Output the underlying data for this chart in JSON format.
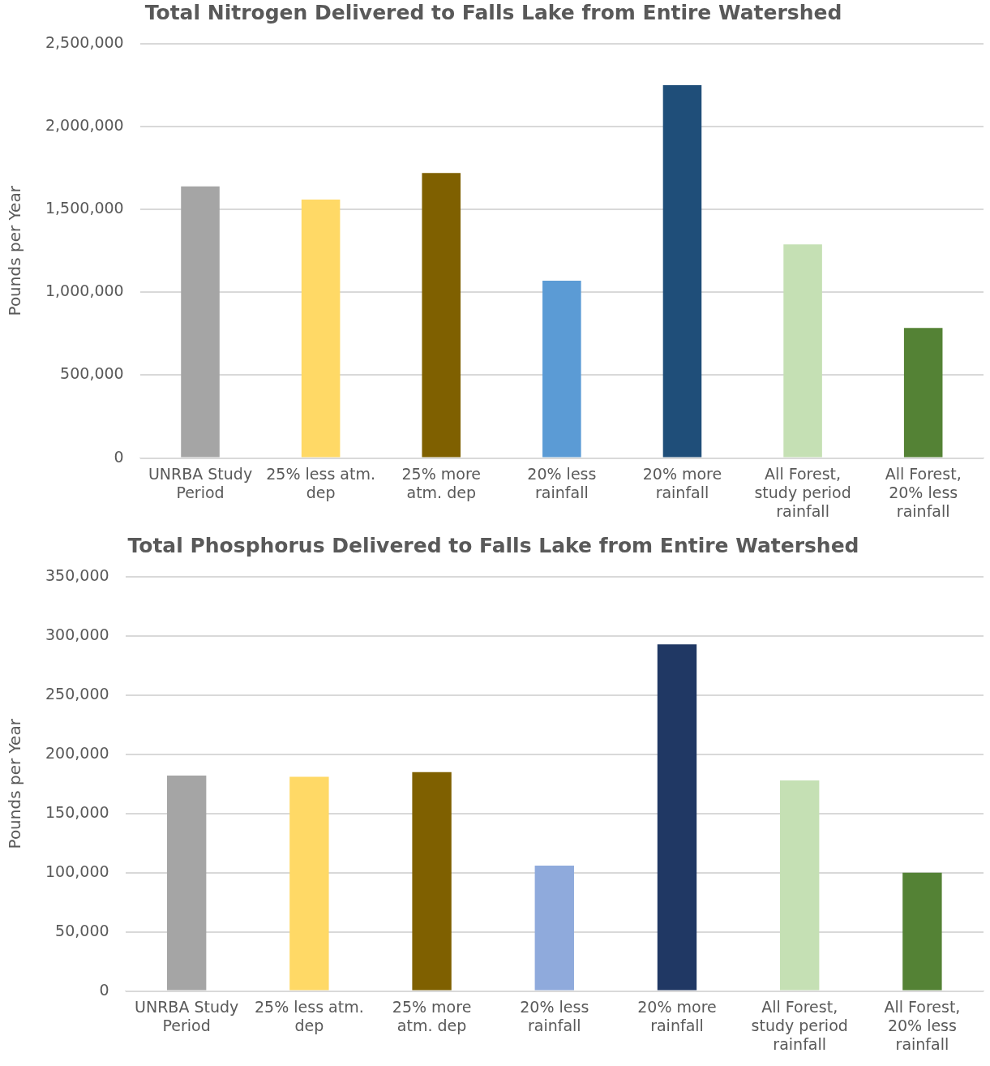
{
  "chart_data": [
    {
      "type": "bar",
      "title": "Total Nitrogen Delivered to Falls Lake from Entire Watershed",
      "ylabel": "Pounds per Year",
      "categories": [
        "UNRBA Study Period",
        "25% less atm. dep",
        "25% more atm. dep",
        "20% less rainfall",
        "20% more rainfall",
        "All Forest, study period rainfall",
        "All Forest, 20% less rainfall"
      ],
      "values": [
        1640000,
        1560000,
        1720000,
        1070000,
        2250000,
        1290000,
        785000
      ],
      "colors": [
        "#a5a5a5",
        "#ffd966",
        "#7f6000",
        "#5b9bd5",
        "#1f4e79",
        "#c5e0b4",
        "#548235"
      ],
      "ylim": [
        0,
        2500000
      ],
      "yticks": [
        0,
        {
          "value": 500000,
          "label": "500,000"
        },
        {
          "value": 1000000,
          "label": "1,000,000"
        },
        {
          "value": 1500000,
          "label": "1,500,000"
        },
        {
          "value": 2000000,
          "label": "2,000,000"
        },
        {
          "value": 2500000,
          "label": "2,500,000"
        }
      ],
      "grid": "y",
      "legend": false
    },
    {
      "type": "bar",
      "title": "Total Phosphorus Delivered to Falls Lake from Entire Watershed",
      "ylabel": "Pounds per Year",
      "categories": [
        "UNRBA Study Period",
        "25% less atm. dep",
        "25% more atm. dep",
        "20% less rainfall",
        "20% more rainfall",
        "All Forest, study period rainfall",
        "All Forest, 20% less rainfall"
      ],
      "values": [
        182000,
        181000,
        185000,
        106000,
        293000,
        178000,
        100000
      ],
      "colors": [
        "#a5a5a5",
        "#ffd966",
        "#7f6000",
        "#8faadc",
        "#203864",
        "#c5e0b4",
        "#548235"
      ],
      "ylim": [
        0,
        350000
      ],
      "yticks": [
        0,
        {
          "value": 50000,
          "label": "50,000"
        },
        {
          "value": 100000,
          "label": "100,000"
        },
        {
          "value": 150000,
          "label": "150,000"
        },
        {
          "value": 200000,
          "label": "200,000"
        },
        {
          "value": 250000,
          "label": "250,000"
        },
        {
          "value": 300000,
          "label": "300,000"
        },
        {
          "value": 350000,
          "label": "350,000"
        }
      ],
      "grid": "y",
      "legend": false
    }
  ]
}
